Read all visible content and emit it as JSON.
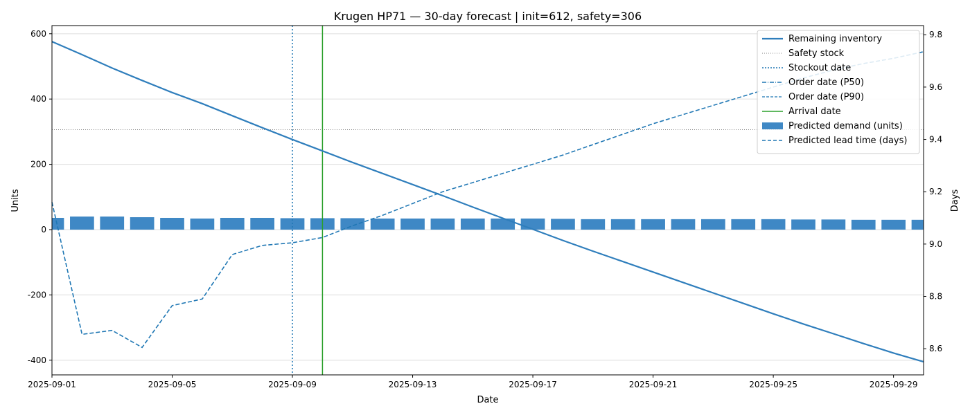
{
  "chart_data": {
    "type": "bar+line",
    "title": "Krugen HP71 — 30-day forecast | init=612, safety=306",
    "xlabel": "Date",
    "ylabel_left": "Units",
    "ylabel_right": "Days",
    "x_start": "2025-09-01",
    "x_end": "2025-09-30",
    "xlim": [
      "2025-09-01",
      "2025-09-30"
    ],
    "ylim_left": [
      -445,
      625
    ],
    "ylim_right": [
      8.5,
      9.835
    ],
    "x_tick_labels": [
      "2025-09-01",
      "2025-09-05",
      "2025-09-09",
      "2025-09-13",
      "2025-09-17",
      "2025-09-21",
      "2025-09-25",
      "2025-09-29"
    ],
    "y_left_ticks": [
      -400,
      -200,
      0,
      200,
      400,
      600
    ],
    "y_right_ticks": [
      8.6,
      8.8,
      9.0,
      9.2,
      9.4,
      9.6,
      9.8
    ],
    "grid": "horizontal",
    "legend_position": "top-right",
    "dates": [
      "2025-09-01",
      "2025-09-02",
      "2025-09-03",
      "2025-09-04",
      "2025-09-05",
      "2025-09-06",
      "2025-09-07",
      "2025-09-08",
      "2025-09-09",
      "2025-09-10",
      "2025-09-11",
      "2025-09-12",
      "2025-09-13",
      "2025-09-14",
      "2025-09-15",
      "2025-09-16",
      "2025-09-17",
      "2025-09-18",
      "2025-09-19",
      "2025-09-20",
      "2025-09-21",
      "2025-09-22",
      "2025-09-23",
      "2025-09-24",
      "2025-09-25",
      "2025-09-26",
      "2025-09-27",
      "2025-09-28",
      "2025-09-29",
      "2025-09-30"
    ],
    "series": [
      {
        "name": "Remaining inventory",
        "kind": "line",
        "axis": "left",
        "color": "#2f7ebc",
        "values": [
          576,
          536,
          495,
          457,
          420,
          386,
          349,
          312,
          276,
          241,
          206,
          172,
          138,
          104,
          69,
          35,
          1,
          -33,
          -66,
          -98,
          -130,
          -162,
          -194,
          -226,
          -258,
          -289,
          -319,
          -349,
          -378,
          -405
        ]
      },
      {
        "name": "Predicted demand (units)",
        "kind": "bar",
        "axis": "left",
        "color": "#3f88c5",
        "values": [
          36,
          40,
          40,
          38,
          36,
          34,
          36,
          36,
          35,
          35,
          35,
          34,
          34,
          34,
          34,
          34,
          34,
          33,
          32,
          32,
          32,
          32,
          32,
          32,
          32,
          31,
          31,
          30,
          30,
          30
        ]
      },
      {
        "name": "Predicted lead time (days)",
        "kind": "line",
        "axis": "right",
        "color": "#1f77b4",
        "values": [
          9.16,
          8.655,
          8.67,
          8.605,
          8.765,
          8.79,
          8.96,
          8.995,
          9.005,
          9.025,
          9.07,
          9.11,
          9.155,
          9.2,
          9.235,
          9.27,
          9.305,
          9.34,
          9.38,
          9.42,
          9.46,
          9.495,
          9.53,
          9.565,
          9.6,
          9.635,
          9.665,
          9.69,
          9.71,
          9.735
        ]
      }
    ],
    "safety_stock": {
      "name": "Safety stock",
      "value": 306,
      "color": "#808080"
    },
    "stockout_date": {
      "name": "Stockout date",
      "date": "2025-09-09",
      "color": "#1f77b4"
    },
    "order_date_p50": {
      "name": "Order date (P50)",
      "color": "#1f77b4"
    },
    "order_date_p90": {
      "name": "Order date (P90)",
      "color": "#1f77b4"
    },
    "arrival_date": {
      "name": "Arrival date",
      "date": "2025-09-10",
      "color": "#2ca02c"
    },
    "legend": [
      {
        "label": "Remaining inventory",
        "style": "solid-thick",
        "color": "#2f7ebc"
      },
      {
        "label": "Safety stock",
        "style": "dotted-thin",
        "color": "#808080"
      },
      {
        "label": "Stockout date",
        "style": "dotted",
        "color": "#1f77b4"
      },
      {
        "label": "Order date (P50)",
        "style": "dashdot",
        "color": "#1f77b4"
      },
      {
        "label": "Order date (P90)",
        "style": "dashed-thin",
        "color": "#1f77b4"
      },
      {
        "label": "Arrival date",
        "style": "solid",
        "color": "#2ca02c"
      },
      {
        "label": "Predicted demand (units)",
        "style": "bar",
        "color": "#3f88c5"
      },
      {
        "label": "Predicted lead time (days)",
        "style": "dashed",
        "color": "#1f77b4"
      }
    ]
  }
}
